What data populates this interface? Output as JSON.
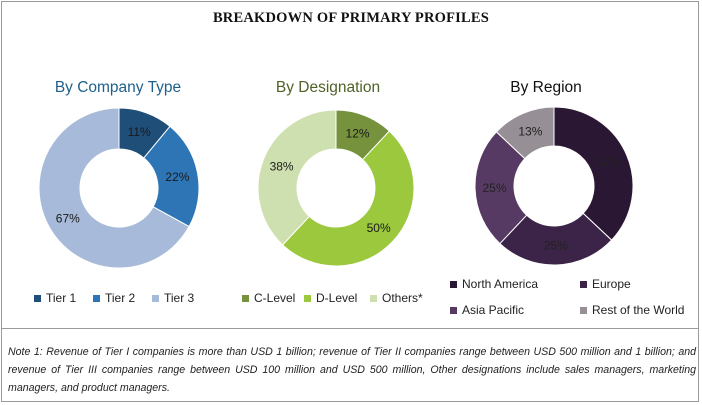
{
  "title": "BREAKDOWN OF PRIMARY PROFILES",
  "chart_data": [
    {
      "type": "pie",
      "title": "By Company Type",
      "title_color": "#1f5f8b",
      "categories": [
        "Tier 1",
        "Tier 2",
        "Tier 3"
      ],
      "values": [
        11,
        22,
        67
      ],
      "labels": [
        "11%",
        "22%",
        "67%"
      ],
      "colors": [
        "#1f4e79",
        "#2e75b6",
        "#a7bad9"
      ],
      "legend_position": "bottom"
    },
    {
      "type": "pie",
      "title": "By Designation",
      "title_color": "#4f6228",
      "categories": [
        "C-Level",
        "D-Level",
        "Others*"
      ],
      "values": [
        12,
        50,
        38
      ],
      "labels": [
        "12%",
        "50%",
        "38%"
      ],
      "colors": [
        "#76923c",
        "#9bc83c",
        "#cfe0b0"
      ],
      "legend_position": "bottom"
    },
    {
      "type": "pie",
      "title": "By Region",
      "title_color": "#111111",
      "categories": [
        "North America",
        "Europe",
        "Asia Pacific",
        "Rest of the World"
      ],
      "values": [
        37,
        25,
        25,
        13
      ],
      "labels": [
        "37%",
        "25%",
        "25%",
        "13%"
      ],
      "colors": [
        "#2a1733",
        "#3b2447",
        "#563a63",
        "#969096"
      ],
      "legend_position": "bottom"
    }
  ],
  "note": "Note 1: Revenue of Tier I companies is more than USD 1 billion; revenue of Tier II companies range between USD 500 million and 1 billion; and revenue of Tier III companies range between USD 100 million and USD 500 million, Other designations include sales managers, marketing managers, and product managers."
}
